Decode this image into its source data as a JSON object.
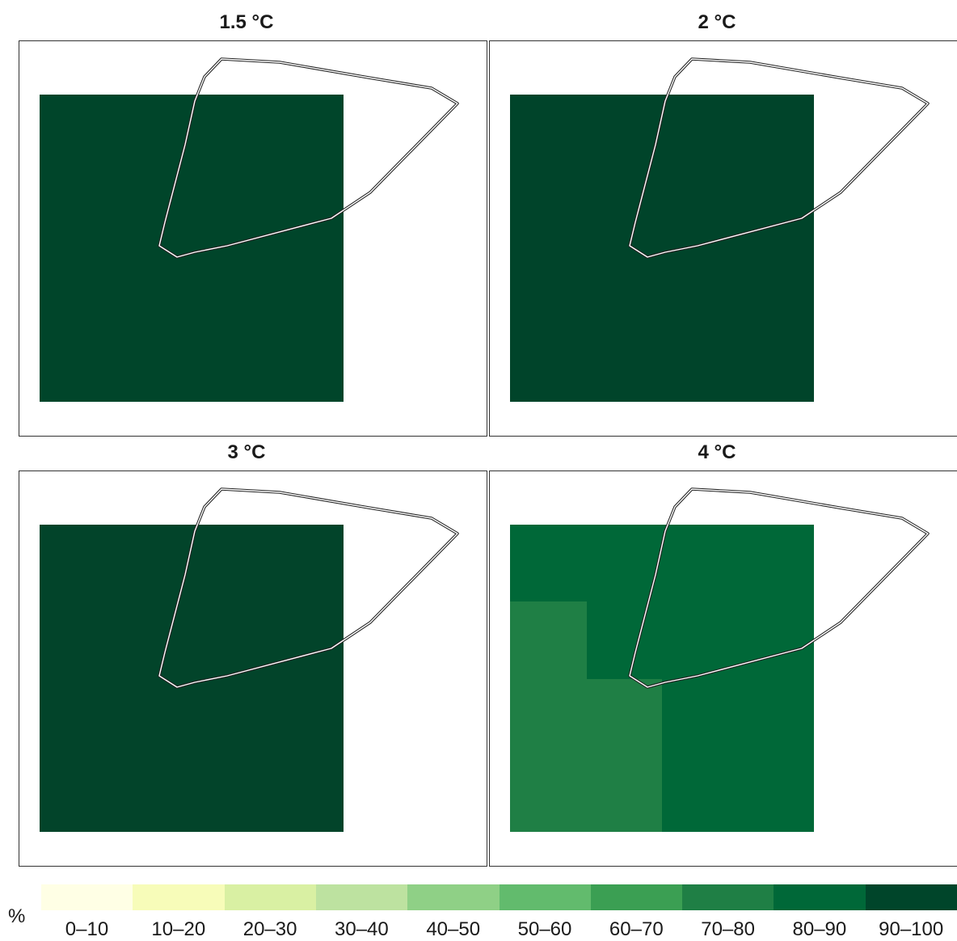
{
  "panels": [
    {
      "title": "1.5 °C",
      "cells": [
        {
          "class": "90-100",
          "color": "#00452a"
        }
      ]
    },
    {
      "title": "2 °C",
      "cells": [
        {
          "class": "90-100",
          "color": "#00442a"
        }
      ]
    },
    {
      "title": "3 °C",
      "cells": [
        {
          "class": "90-100",
          "color": "#02442a"
        }
      ]
    },
    {
      "title": "4 °C",
      "cells": [
        {
          "class": "80-90",
          "color": "#006838"
        },
        {
          "class": "70-80",
          "color": "#1f7f45"
        }
      ]
    }
  ],
  "legend": {
    "unit": "%",
    "classes": [
      {
        "label": "0–10",
        "color": "#ffffe5"
      },
      {
        "label": "10–20",
        "color": "#f7fcb9"
      },
      {
        "label": "20–30",
        "color": "#d9f0a3"
      },
      {
        "label": "30–40",
        "color": "#bde2a0"
      },
      {
        "label": "40–50",
        "color": "#8fd086"
      },
      {
        "label": "50–60",
        "color": "#62bb6d"
      },
      {
        "label": "60–70",
        "color": "#3b9f53"
      },
      {
        "label": "70–80",
        "color": "#1f7f45"
      },
      {
        "label": "80–90",
        "color": "#006838"
      },
      {
        "label": "90–100",
        "color": "#00452a"
      }
    ]
  }
}
